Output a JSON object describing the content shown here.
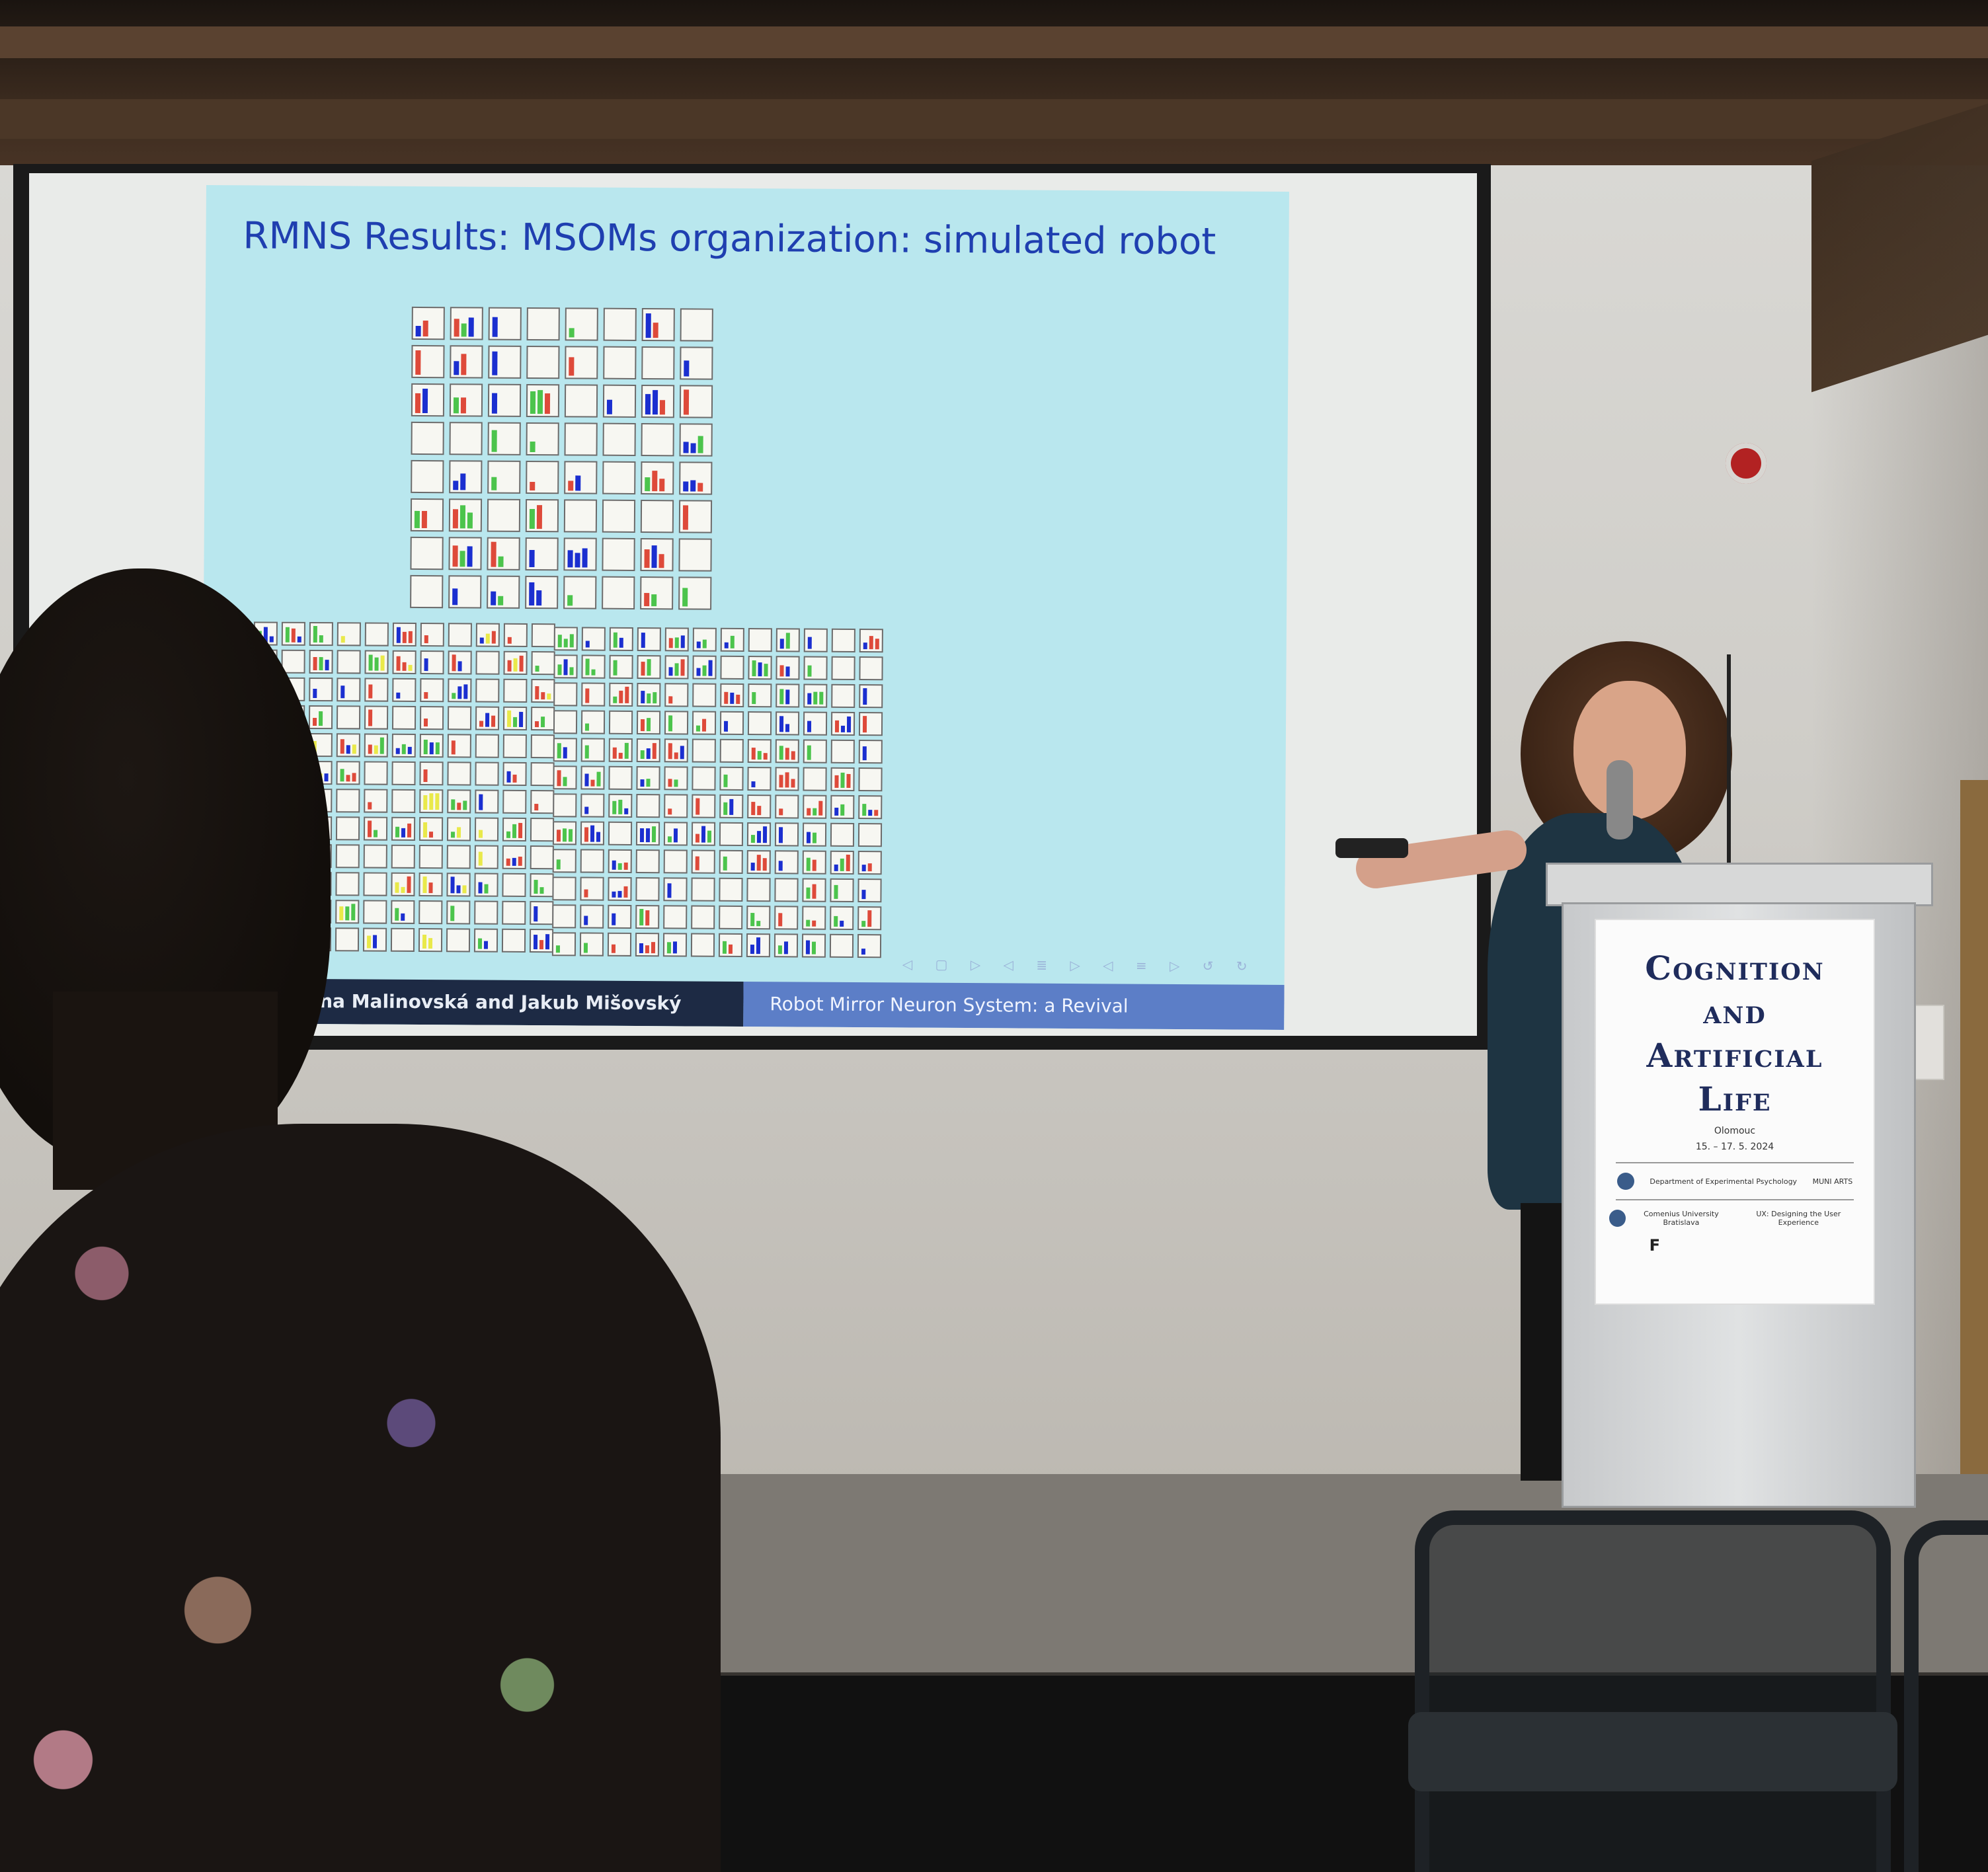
{
  "slide": {
    "title": "RMNS Results:  MSOMs organization:  simulated robot",
    "footer_authors": "Kristína Malinovská and Jakub Mišovský",
    "footer_talk": "Robot Mirror Neuron System:  a Revival",
    "nav_icons": "◁ ▢ ▷ ◁ ≣ ▷ ◁ ≡ ▷ ↺ ↻"
  },
  "lectern_poster": {
    "title_line1": "Cognition",
    "title_line2": "and",
    "title_line3": "Artificial",
    "title_line4": "Life",
    "place": "Olomouc",
    "dates": "15. – 17. 5. 2024",
    "logo_row1_left": "Department of Experimental Psychology",
    "logo_row1_right": "MUNI ARTS",
    "logo_row2_left": "Comenius University Bratislava",
    "logo_row2_right": "UX: Designing the User Experience",
    "logo_row3_left": "F"
  },
  "colors": {
    "slide_background": "#b9e7ee",
    "slide_title": "#1f3fb0",
    "bar_blue": "#1b2fd0",
    "bar_red": "#de4a3a",
    "bar_green": "#4cc44c",
    "bar_yellow": "#e9e94a",
    "footer_dark": "#1d2a44",
    "footer_light": "#5c7ec7"
  }
}
